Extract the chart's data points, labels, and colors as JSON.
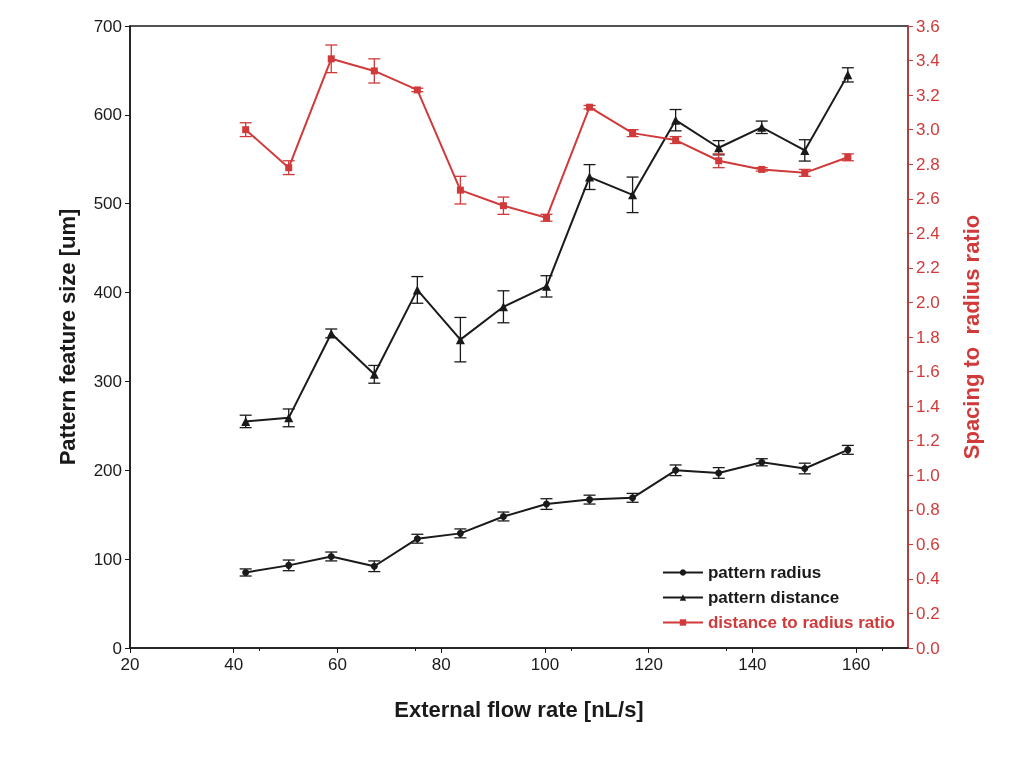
{
  "chart_data": {
    "type": "line",
    "xlabel": "External flow rate [nL/s]",
    "ylabel": "Pattern feature size [um]",
    "y2label": "Spacing to  radius ratio",
    "x": [
      42.3,
      50.6,
      58.8,
      67.1,
      75.4,
      83.7,
      92.0,
      100.3,
      108.6,
      116.9,
      125.2,
      133.5,
      141.8,
      150.1,
      158.4
    ],
    "series": [
      {
        "name": "pattern radius",
        "color": "#1a1a1a",
        "marker": "circle",
        "values": [
          85,
          93,
          103,
          92,
          123,
          129,
          148,
          162,
          167,
          169,
          200,
          197,
          209,
          202,
          223
        ],
        "errors": [
          4,
          6,
          5,
          6,
          5,
          5,
          5,
          6,
          5,
          5,
          6,
          6,
          4,
          6,
          5
        ]
      },
      {
        "name": "pattern distance",
        "color": "#1a1a1a",
        "marker": "triangle",
        "values": [
          255,
          259,
          354,
          308,
          403,
          347,
          384,
          407,
          530,
          510,
          594,
          563,
          586,
          560,
          645
        ],
        "errors": [
          7,
          10,
          5,
          10,
          15,
          25,
          18,
          12,
          14,
          20,
          12,
          8,
          7,
          12,
          8
        ]
      },
      {
        "name": "distance to radius ratio",
        "color": "#d03a3a",
        "marker": "square",
        "axis": "y2",
        "values": [
          3.0,
          2.78,
          3.41,
          3.34,
          3.23,
          2.65,
          2.56,
          2.49,
          3.13,
          2.98,
          2.94,
          2.82,
          2.77,
          2.75,
          2.84
        ],
        "errors": [
          0.04,
          0.04,
          0.08,
          0.07,
          0.01,
          0.08,
          0.05,
          0.02,
          0.01,
          0.02,
          0.02,
          0.04,
          0.01,
          0.02,
          0.02
        ]
      }
    ],
    "xlim": [
      20,
      170
    ],
    "xticks": [
      20,
      40,
      60,
      80,
      100,
      120,
      140,
      160
    ],
    "ylim": [
      0,
      700
    ],
    "yticks": [
      0,
      100,
      200,
      300,
      400,
      500,
      600,
      700
    ],
    "y2lim": [
      0,
      3.6
    ],
    "y2ticks": [
      {
        "value": 0,
        "label": "0.0"
      },
      0.2,
      0.4,
      0.6,
      0.8,
      {
        "value": 1,
        "label": "1.0"
      },
      1.2,
      1.4,
      1.6,
      1.8,
      {
        "value": 2,
        "label": "2.0"
      },
      2.2,
      2.4,
      2.6,
      2.8,
      {
        "value": 3,
        "label": "3.0"
      },
      3.2,
      3.4,
      3.6
    ],
    "grid": false,
    "legend": "bottom right",
    "line_style": "solid"
  }
}
